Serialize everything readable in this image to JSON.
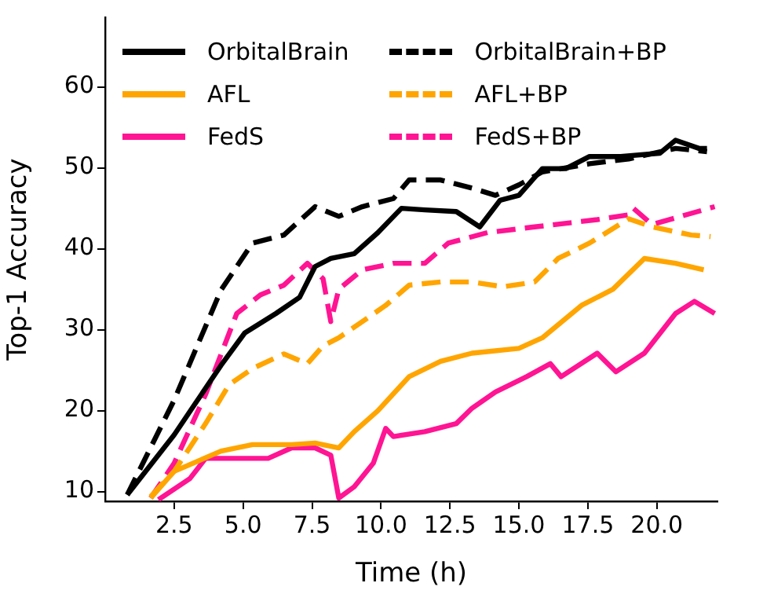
{
  "chart_data": {
    "type": "line",
    "xlabel": "Time (h)",
    "ylabel": "Top-1 Accuracy",
    "xlim": [
      0,
      22.2
    ],
    "ylim": [
      8.8,
      68.6
    ],
    "xticks": [
      {
        "value": 2.5,
        "label": "2.5"
      },
      {
        "value": 5,
        "label": "5.0"
      },
      {
        "value": 7.5,
        "label": "7.5"
      },
      {
        "value": 10,
        "label": "10.0"
      },
      {
        "value": 12.5,
        "label": "12.5"
      },
      {
        "value": 15,
        "label": "15.0"
      },
      {
        "value": 17.5,
        "label": "17.5"
      },
      {
        "value": 20,
        "label": "20.0"
      }
    ],
    "yticks": [
      10,
      20,
      30,
      40,
      50,
      60
    ],
    "grid": false,
    "legend": "top left",
    "marker": "none",
    "series": [
      {
        "name": "OrbitalBrain",
        "color": "#000000",
        "line_style": "solid",
        "x": [
          0.8,
          2.5,
          4.2,
          5.06,
          6.19,
          7.05,
          7.61,
          8.18,
          9.03,
          9.89,
          10.74,
          11.59,
          12.73,
          13.58,
          14.32,
          15.0,
          15.85,
          16.7,
          17.56,
          18.69,
          20.11,
          20.68,
          21.53,
          21.82
        ],
        "values": [
          9.6,
          17,
          25.6,
          29.6,
          32,
          34,
          37.8,
          38.8,
          39.4,
          42,
          45,
          44.8,
          44.6,
          42.7,
          46,
          46.6,
          49.9,
          49.9,
          51.4,
          51.4,
          51.8,
          53.4,
          52.4,
          52.4
        ]
      },
      {
        "name": "AFL",
        "color": "#ffa500",
        "line_style": "solid",
        "x": [
          1.65,
          2.5,
          4.2,
          5.34,
          6.76,
          7.61,
          8.47,
          9.03,
          9.89,
          11.02,
          12.16,
          13.3,
          15.0,
          15.85,
          17.27,
          18.41,
          19.55,
          20.68,
          21.7
        ],
        "values": [
          9.2,
          12.5,
          15,
          15.8,
          15.8,
          16,
          15.4,
          17.4,
          20,
          24.2,
          26.1,
          27.1,
          27.7,
          29,
          33,
          35,
          38.8,
          38.2,
          37.4
        ]
      },
      {
        "name": "FedS",
        "color": "#ff1493",
        "line_style": "solid",
        "x": [
          1.93,
          3.07,
          3.64,
          5.91,
          6.76,
          7.61,
          8.18,
          8.47,
          9.03,
          9.72,
          10.17,
          10.45,
          11.59,
          12.73,
          13.3,
          14.15,
          15.28,
          16.14,
          16.53,
          17.84,
          18.52,
          19.55,
          20.68,
          21.36,
          22.1
        ],
        "values": [
          9,
          11.6,
          14.1,
          14.1,
          15.4,
          15.4,
          14.5,
          9.2,
          10.6,
          13.5,
          17.8,
          16.8,
          17.4,
          18.4,
          20.3,
          22.3,
          24.2,
          25.8,
          24.2,
          27.1,
          24.8,
          27.1,
          32,
          33.5,
          32
        ]
      },
      {
        "name": "OrbitalBrain+BP",
        "color": "#000000",
        "line_style": "dashed",
        "x": [
          0.8,
          2.5,
          4.2,
          5.34,
          6.48,
          7.61,
          8.47,
          9.32,
          10.45,
          11.02,
          12.16,
          13.3,
          14.15,
          15.0,
          15.85,
          17.56,
          18.98,
          20.68,
          21.82
        ],
        "values": [
          9.6,
          21.3,
          34.9,
          40.7,
          41.7,
          45.2,
          44,
          45.2,
          46.2,
          48.5,
          48.5,
          47.5,
          46.6,
          47.9,
          49.5,
          50.5,
          51.1,
          52.4,
          52
        ]
      },
      {
        "name": "AFL+BP",
        "color": "#ffa500",
        "line_style": "dashed",
        "x": [
          1.65,
          2.5,
          3.64,
          4.49,
          5.34,
          6.48,
          7.33,
          7.9,
          8.47,
          9.32,
          10.17,
          11.02,
          12.16,
          13.3,
          14.43,
          15.57,
          16.42,
          17.56,
          18.98,
          19.83,
          21.25,
          21.95
        ],
        "values": [
          9.4,
          12.5,
          18.4,
          23.2,
          25.2,
          27,
          25.8,
          28,
          29,
          31,
          33,
          35.5,
          35.9,
          35.9,
          35.3,
          35.9,
          38.8,
          40.7,
          43.7,
          42.7,
          41.7,
          41.5
        ]
      },
      {
        "name": "FedS+BP",
        "color": "#ff1493",
        "line_style": "dashed",
        "x": [
          1.65,
          2.5,
          3.64,
          4.77,
          5.63,
          6.48,
          7.33,
          7.9,
          8.18,
          8.47,
          9.32,
          10.45,
          11.59,
          12.44,
          13.86,
          15.57,
          17.84,
          18.98,
          19.15,
          19.83,
          22.1
        ],
        "values": [
          9.2,
          13.5,
          22,
          32,
          34.3,
          35.5,
          38.2,
          36.3,
          31,
          35,
          37.4,
          38.2,
          38.2,
          40.7,
          42,
          42.7,
          43.6,
          44.2,
          45,
          43,
          45.2
        ]
      }
    ]
  }
}
